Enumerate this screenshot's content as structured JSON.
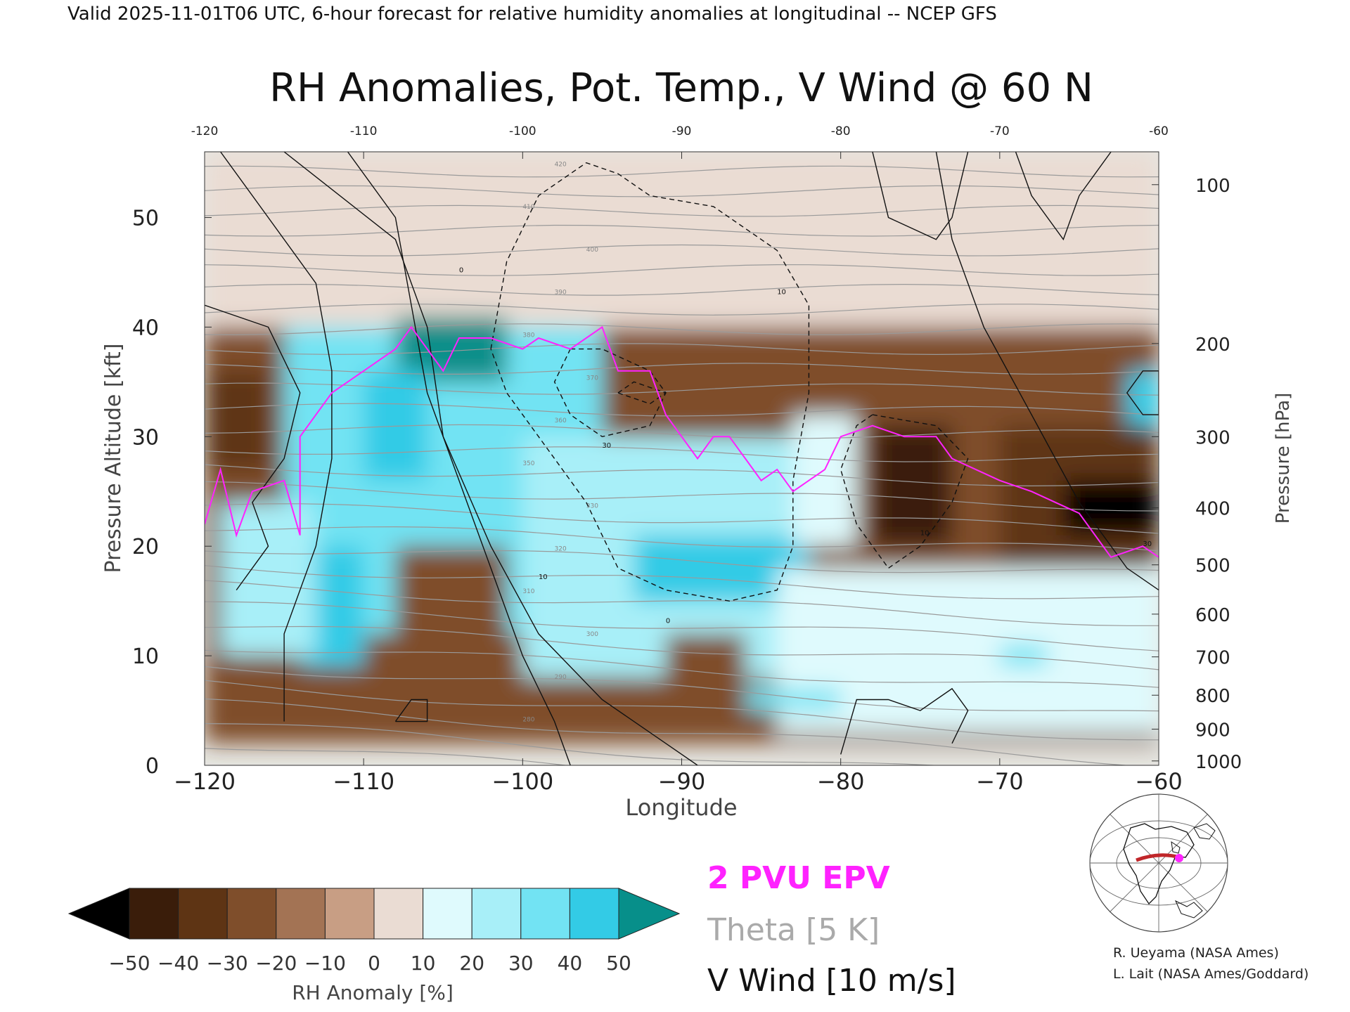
{
  "header": {
    "valid_line": "Valid 2025-11-01T06 UTC, 6-hour forecast for relative humidity anomalies at longitudinal -- NCEP GFS"
  },
  "chart_data": {
    "type": "heatmap",
    "title": "RH Anomalies, Pot. Temp., V Wind @ 60 N",
    "xlabel": "Longitude",
    "ylabel_left": "Pressure Altitude [kft]",
    "ylabel_right": "Pressure [hPa]",
    "xlim": [
      -120,
      -60
    ],
    "ylim": [
      0,
      56
    ],
    "x_ticks": [
      -120,
      -110,
      -100,
      -90,
      -80,
      -70,
      -60
    ],
    "x_tick_labels": [
      "−120",
      "−110",
      "−100",
      "−90",
      "−80",
      "−70",
      "−60"
    ],
    "x_top_tick_labels": [
      "-120",
      "-110",
      "-100",
      "-90",
      "-80",
      "-70",
      "-60"
    ],
    "y_ticks": [
      0,
      10,
      20,
      30,
      40,
      50
    ],
    "pressure_ticks": [
      {
        "label": "100",
        "kft": 53
      },
      {
        "label": "200",
        "kft": 38.5
      },
      {
        "label": "300",
        "kft": 30
      },
      {
        "label": "400",
        "kft": 23.5
      },
      {
        "label": "500",
        "kft": 18.3
      },
      {
        "label": "600",
        "kft": 13.8
      },
      {
        "label": "700",
        "kft": 9.9
      },
      {
        "label": "800",
        "kft": 6.4
      },
      {
        "label": "900",
        "kft": 3.3
      },
      {
        "label": "1000",
        "kft": 0.4
      }
    ],
    "rh_anomaly_fields": [
      {
        "lon": [
          -120,
          -60
        ],
        "kft": [
          40,
          56
        ],
        "value": 0
      },
      {
        "lon": [
          -120,
          -60
        ],
        "kft": [
          2,
          40
        ],
        "value": -25
      },
      {
        "lon": [
          -115,
          -95
        ],
        "kft": [
          12,
          40
        ],
        "value": 35
      },
      {
        "lon": [
          -108,
          -101
        ],
        "kft": [
          35,
          41
        ],
        "value": 50
      },
      {
        "lon": [
          -110,
          -106
        ],
        "kft": [
          26,
          36
        ],
        "value": 45
      },
      {
        "lon": [
          -114,
          -110
        ],
        "kft": [
          9,
          20
        ],
        "value": 45
      },
      {
        "lon": [
          -119,
          -113
        ],
        "kft": [
          10,
          24
        ],
        "value": 25
      },
      {
        "lon": [
          -100,
          -82
        ],
        "kft": [
          8,
          30
        ],
        "value": 25
      },
      {
        "lon": [
          -93,
          -82
        ],
        "kft": [
          15,
          21
        ],
        "value": 40
      },
      {
        "lon": [
          -84,
          -60
        ],
        "kft": [
          3,
          18
        ],
        "value": 15
      },
      {
        "lon": [
          -70,
          -67
        ],
        "kft": [
          9,
          11
        ],
        "value": 35
      },
      {
        "lon": [
          -83,
          -79
        ],
        "kft": [
          20,
          32
        ],
        "value": 15
      },
      {
        "lon": [
          -89,
          -80
        ],
        "kft": [
          5,
          7
        ],
        "value": 30
      },
      {
        "lon": [
          -62,
          -60
        ],
        "kft": [
          31,
          36
        ],
        "value": 45
      },
      {
        "lon": [
          -108,
          -101
        ],
        "kft": [
          2,
          20
        ],
        "value": -30
      },
      {
        "lon": [
          -91,
          -86
        ],
        "kft": [
          4,
          12
        ],
        "value": -30
      },
      {
        "lon": [
          -78,
          -73
        ],
        "kft": [
          20,
          31
        ],
        "value": -45
      },
      {
        "lon": [
          -70,
          -60
        ],
        "kft": [
          18,
          31
        ],
        "value": -40
      },
      {
        "lon": [
          -66,
          -60
        ],
        "kft": [
          21,
          26
        ],
        "value": -55
      },
      {
        "lon": [
          -120,
          -116
        ],
        "kft": [
          27,
          36
        ],
        "value": -35
      }
    ],
    "theta_label_values": [
      280,
      290,
      300,
      310,
      320,
      330,
      350,
      360,
      370,
      380,
      390,
      400,
      410,
      420
    ],
    "v_wind_contour_labels": [
      "0",
      "10",
      "30"
    ],
    "epv_2pvu_line": [
      {
        "lon": -120,
        "kft": 22
      },
      {
        "lon": -119,
        "kft": 27
      },
      {
        "lon": -118,
        "kft": 21
      },
      {
        "lon": -117,
        "kft": 25
      },
      {
        "lon": -115,
        "kft": 26
      },
      {
        "lon": -114,
        "kft": 21
      },
      {
        "lon": -114,
        "kft": 30
      },
      {
        "lon": -112,
        "kft": 34
      },
      {
        "lon": -110,
        "kft": 36
      },
      {
        "lon": -108,
        "kft": 38
      },
      {
        "lon": -107,
        "kft": 40
      },
      {
        "lon": -106,
        "kft": 38
      },
      {
        "lon": -105,
        "kft": 36
      },
      {
        "lon": -104,
        "kft": 39
      },
      {
        "lon": -102,
        "kft": 39
      },
      {
        "lon": -100,
        "kft": 38
      },
      {
        "lon": -99,
        "kft": 39
      },
      {
        "lon": -97,
        "kft": 38
      },
      {
        "lon": -96,
        "kft": 39
      },
      {
        "lon": -95,
        "kft": 40
      },
      {
        "lon": -94,
        "kft": 36
      },
      {
        "lon": -92,
        "kft": 36
      },
      {
        "lon": -91,
        "kft": 32
      },
      {
        "lon": -90,
        "kft": 30
      },
      {
        "lon": -89,
        "kft": 28
      },
      {
        "lon": -88,
        "kft": 30
      },
      {
        "lon": -87,
        "kft": 30
      },
      {
        "lon": -86,
        "kft": 28
      },
      {
        "lon": -85,
        "kft": 26
      },
      {
        "lon": -84,
        "kft": 27
      },
      {
        "lon": -83,
        "kft": 25
      },
      {
        "lon": -82,
        "kft": 26
      },
      {
        "lon": -81,
        "kft": 27
      },
      {
        "lon": -80,
        "kft": 30
      },
      {
        "lon": -78,
        "kft": 31
      },
      {
        "lon": -76,
        "kft": 30
      },
      {
        "lon": -74,
        "kft": 30
      },
      {
        "lon": -73,
        "kft": 28
      },
      {
        "lon": -70,
        "kft": 26
      },
      {
        "lon": -68,
        "kft": 25
      },
      {
        "lon": -65,
        "kft": 23
      },
      {
        "lon": -63,
        "kft": 19
      },
      {
        "lon": -61,
        "kft": 20
      },
      {
        "lon": -60,
        "kft": 19
      }
    ],
    "colorbar": {
      "label": "RH Anomaly [%]",
      "tick_labels": [
        "−50",
        "−40",
        "−30",
        "−20",
        "−10",
        "0",
        "10",
        "20",
        "30",
        "40",
        "50"
      ],
      "colors": [
        "#000000",
        "#3a1d0a",
        "#5e3414",
        "#7f4e2b",
        "#a37354",
        "#c89e84",
        "#eadcd3",
        "#dffafd",
        "#a8eff8",
        "#72e3f3",
        "#33cbe6",
        "#0b9fc0",
        "#078f8a"
      ]
    },
    "legend": [
      {
        "label": "2 PVU EPV",
        "color": "#ff22ff"
      },
      {
        "label": "Theta [5 K]",
        "color": "#aaaaaa"
      },
      {
        "label": "V Wind [10 m/s]",
        "color": "#000000"
      }
    ]
  },
  "credits": [
    "R. Ueyama (NASA Ames)",
    "L. Lait (NASA Ames/Goddard)"
  ]
}
